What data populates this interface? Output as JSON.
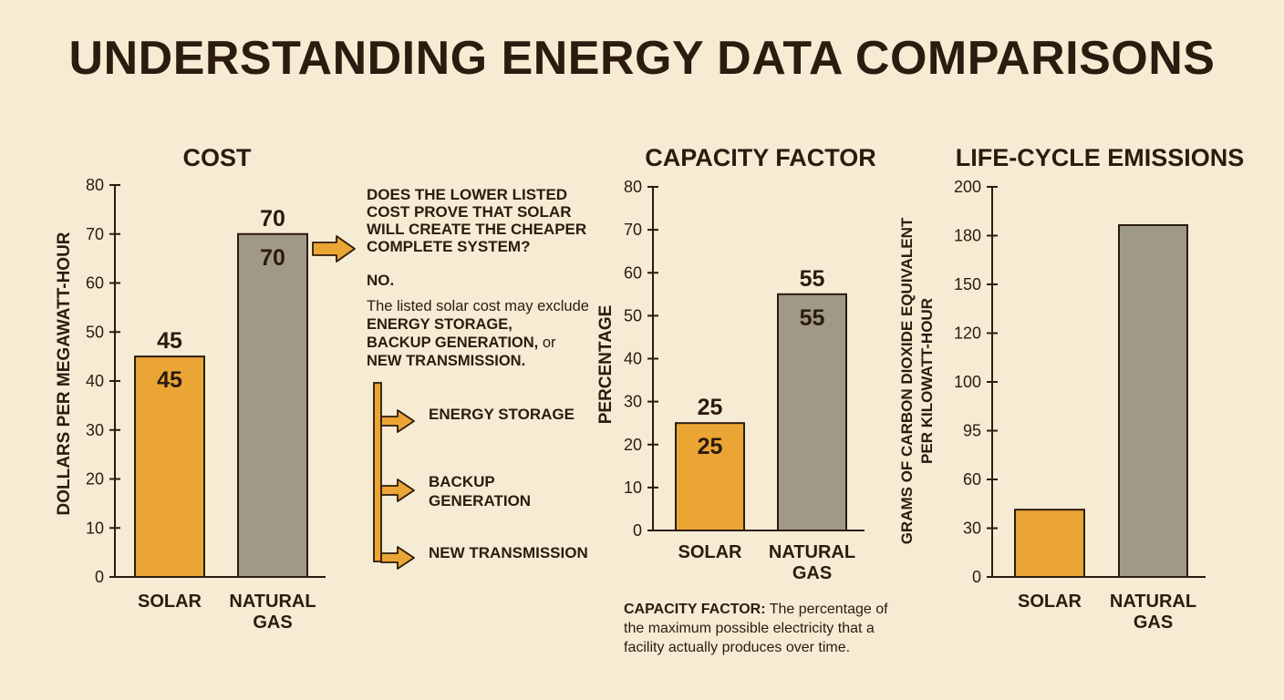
{
  "title": "UNDERSTANDING ENERGY DATA COMPARISONS",
  "colors": {
    "solar": "#eba534",
    "gas": "#a0998a",
    "arrow": "#eba534",
    "ink": "#2c1b0f",
    "background": "#f6ecd3"
  },
  "callout": {
    "question": "DOES THE LOWER LISTED COST PROVE THAT SOLAR WILL CREATE THE CHEAPER COMPLETE SYSTEM?",
    "answer_short": "NO.",
    "answer_text_1": "The listed solar cost may exclude ",
    "answer_bold_1": "ENERGY STORAGE,",
    "answer_bold_2": "BACKUP GENERATION,",
    "answer_text_2": " or",
    "answer_bold_3": "NEW TRANSMISSION.",
    "items": [
      "ENERGY STORAGE",
      "BACKUP GENERATION",
      "NEW TRANSMISSION"
    ]
  },
  "definition": {
    "term": "CAPACITY FACTOR:",
    "text": " The percentage of the maximum possible electricity that a facility actually produces over time."
  },
  "chart_data": [
    {
      "type": "bar",
      "title": "COST",
      "ylabel": "DOLLARS PER MEGAWATT-HOUR",
      "categories": [
        "SOLAR",
        "NATURAL GAS"
      ],
      "values": [
        45,
        70
      ],
      "data_labels": [
        "45",
        "70"
      ],
      "ylim": [
        0,
        80
      ],
      "yticks": [
        0,
        10,
        20,
        30,
        40,
        50,
        60,
        70,
        80
      ],
      "ytick_labels": [
        "0",
        "10",
        "20",
        "30",
        "40",
        "50",
        "60",
        "70",
        "80"
      ],
      "grid": false
    },
    {
      "type": "bar",
      "title": "CAPACITY FACTOR",
      "ylabel": "PERCENTAGE",
      "categories": [
        "SOLAR",
        "NATURAL GAS"
      ],
      "values": [
        25,
        55
      ],
      "data_labels": [
        "25",
        "55"
      ],
      "ylim": [
        0,
        80
      ],
      "yticks": [
        0,
        10,
        20,
        30,
        40,
        50,
        60,
        70,
        80
      ],
      "ytick_labels": [
        "0",
        "10",
        "20",
        "30",
        "40",
        "50",
        "60",
        "70",
        "80"
      ],
      "grid": false
    },
    {
      "type": "bar",
      "title": "LIFE-CYCLE EMISSIONS",
      "ylabel": "GRAMS OF CARBON DIOXIDE EQUIVALENT PER KILOWATT-HOUR",
      "categories": [
        "SOLAR",
        "NATURAL GAS"
      ],
      "values": [
        35,
        183
      ],
      "data_labels": [],
      "ylim": [
        0,
        200
      ],
      "yticks": [
        0,
        30,
        60,
        95,
        100,
        120,
        150,
        180,
        200
      ],
      "ytick_labels": [
        "0",
        "30",
        "60",
        "95",
        "100",
        "120",
        "150",
        "180",
        "200"
      ],
      "grid": false
    }
  ]
}
